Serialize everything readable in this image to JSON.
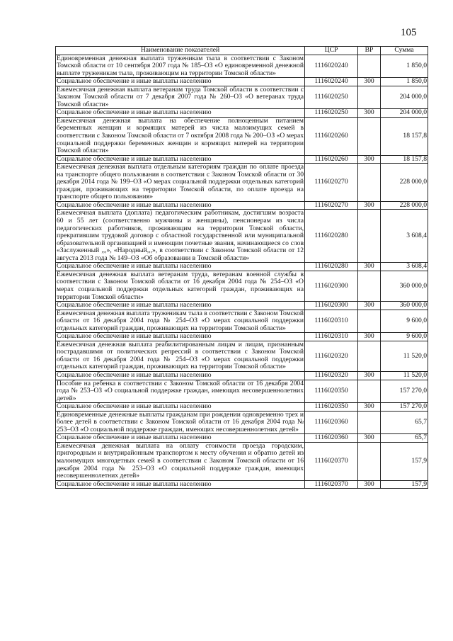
{
  "page_number": "105",
  "table": {
    "headers": [
      "Наименование показателей",
      "ЦСР",
      "ВР",
      "Сумма"
    ],
    "rows": [
      {
        "name": "Единовременная денежная выплата труженикам тыла в соответствии с Законом Томской области от 10 сентября 2007 года № 185–ОЗ «О единовременной денежной выплате труженикам тыла, проживающим на территории Томской области»",
        "csr": "1116020240",
        "vr": "",
        "sum": "1 850,0"
      },
      {
        "name": "Социальное обеспечение и иные выплаты населению",
        "csr": "1116020240",
        "vr": "300",
        "sum": "1 850,0"
      },
      {
        "name": "Ежемесячная денежная выплата ветеранам труда Томской области в соответствии с Законом Томской области от 7 декабря 2007 года № 260–ОЗ «О ветеранах труда Томской области»",
        "csr": "1116020250",
        "vr": "",
        "sum": "204 000,0"
      },
      {
        "name": "Социальное обеспечение и иные выплаты населению",
        "csr": "1116020250",
        "vr": "300",
        "sum": "204 000,0"
      },
      {
        "name": "Ежемесячная денежная выплата на обеспечение полноценным питанием беременных женщин и кормящих матерей из числа малоимущих семей в соответствии с Законом Томской области от 7 октября 2008 года № 200–ОЗ «О мерах социальной поддержки беременных женщин и кормящих матерей на территории Томской области»",
        "csr": "1116020260",
        "vr": "",
        "sum": "18 157,8"
      },
      {
        "name": "Социальное обеспечение и иные выплаты населению",
        "csr": "1116020260",
        "vr": "300",
        "sum": "18 157,8"
      },
      {
        "name": "Ежемесячная денежная выплата отдельным категориям граждан по оплате проезда на транспорте общего пользования в соответствии с Законом Томской области от 30 декабря 2014 года № 199–ОЗ «О мерах социальной поддержки отдельных категорий граждан, проживающих на территории Томской области, по оплате проезда на транспорте общего пользования»",
        "csr": "1116020270",
        "vr": "",
        "sum": "228 000,0"
      },
      {
        "name": "Социальное обеспечение и иные выплаты населению",
        "csr": "1116020270",
        "vr": "300",
        "sum": "228 000,0"
      },
      {
        "name": "Ежемесячная выплата (доплата) педагогическим работникам, достигшим возраста 60 и 55 лет (соответственно мужчины и женщины), пенсионерам из числа педагогических работников, проживающим на территории Томской области, прекратившим трудовой договор с областной государственной или муниципальной образовательной организацией и имеющим почетные звания, начинающиеся со слов «Заслуженный ,,,», «Народный,,,», в соответствии с Законом Томской области от 12 августа 2013 года № 149–ОЗ «Об образовании в Томской области»",
        "csr": "1116020280",
        "vr": "",
        "sum": "3 608,4"
      },
      {
        "name": "Социальное обеспечение и иные выплаты населению",
        "csr": "1116020280",
        "vr": "300",
        "sum": "3 608,4"
      },
      {
        "name": "Ежемесячная денежная выплата ветеранам труда, ветеранам военной службы в соответствии с Законом Томской области от 16 декабря 2004 года № 254–ОЗ «О мерах социальной поддержки отдельных категорий граждан, проживающих на территории Томской области»",
        "csr": "1116020300",
        "vr": "",
        "sum": "360 000,0"
      },
      {
        "name": "Социальное обеспечение и иные выплаты населению",
        "csr": "1116020300",
        "vr": "300",
        "sum": "360 000,0"
      },
      {
        "name": "Ежемесячная денежная выплата труженикам тыла в соответствии с Законом Томской области от 16 декабря 2004 года № 254–ОЗ «О мерах социальной поддержки отдельных категорий граждан, проживающих на территории Томской области»",
        "csr": "1116020310",
        "vr": "",
        "sum": "9 600,0"
      },
      {
        "name": "Социальное обеспечение и иные выплаты населению",
        "csr": "1116020310",
        "vr": "300",
        "sum": "9 600,0"
      },
      {
        "name": "Ежемесячная денежная выплата реабилитированным лицам и лицам, признанным пострадавшими от политических репрессий в соответствии с Законом Томской области от 16 декабря 2004 года № 254–ОЗ «О мерах социальной поддержки отдельных категорий граждан, проживающих на территории Томской области»",
        "csr": "1116020320",
        "vr": "",
        "sum": "11 520,0"
      },
      {
        "name": "Социальное обеспечение и иные выплаты населению",
        "csr": "1116020320",
        "vr": "300",
        "sum": "11 520,0"
      },
      {
        "name": "Пособие на ребенка в соответствии с Законом Томской области от 16 декабря 2004 года № 253–ОЗ «О социальной поддержке граждан, имеющих несовершеннолетних детей»",
        "csr": "1116020350",
        "vr": "",
        "sum": "157 270,0"
      },
      {
        "name": "Социальное обеспечение и иные выплаты населению",
        "csr": "1116020350",
        "vr": "300",
        "sum": "157 270,0"
      },
      {
        "name": "Единовременные денежные выплаты гражданам при рождении одновременно трех и более детей в соответствии с Законом Томской области от 16 декабря 2004 года № 253–ОЗ «О социальной поддержке граждан, имеющих несовершеннолетних детей»",
        "csr": "1116020360",
        "vr": "",
        "sum": "65,7"
      },
      {
        "name": "Социальное обеспечение и иные выплаты населению",
        "csr": "1116020360",
        "vr": "300",
        "sum": "65,7"
      },
      {
        "name": "Ежемесячная денежная выплата на оплату стоимости проезда городским, пригородным и внутрирайонным транспортом к месту обучения и обратно детей из малоимущих многодетных семей в соответствии с Законом Томской области от 16 декабря 2004 года № 253–ОЗ «О социальной поддержке граждан, имеющих несовершеннолетних детей»",
        "csr": "1116020370",
        "vr": "",
        "sum": "157,9"
      },
      {
        "name": "Социальное обеспечение и иные выплаты населению",
        "csr": "1116020370",
        "vr": "300",
        "sum": "157,9"
      }
    ]
  }
}
